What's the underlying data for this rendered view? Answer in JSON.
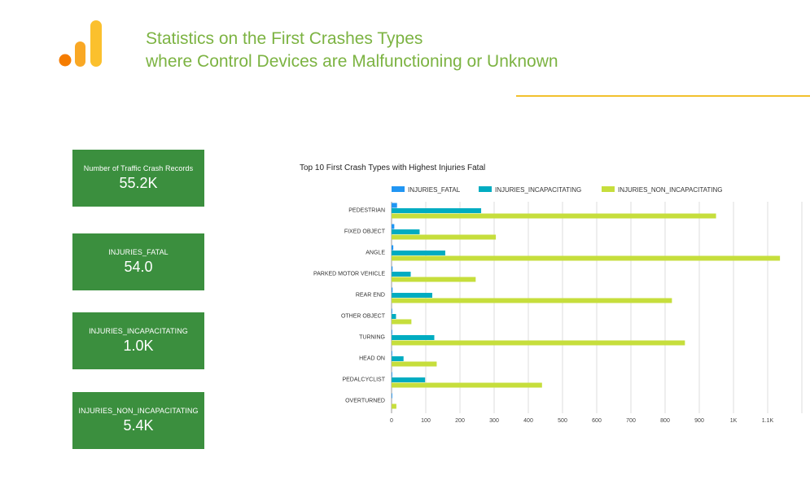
{
  "header": {
    "title_line1": "Statistics on the First Crashes Types",
    "title_line2": "where Control Devices are Malfunctioning or Unknown",
    "logo_icon": "bar-chart-logo-icon",
    "title_color": "#7cb342",
    "rule_color": "#f2c12e"
  },
  "kpis": [
    {
      "label": "Number of Traffic Crash Records",
      "value": "55.2K"
    },
    {
      "label": "INJURIES_FATAL",
      "value": "54.0"
    },
    {
      "label": "INJURIES_INCAPACITATING",
      "value": "1.0K"
    },
    {
      "label": "INJURIES_NON_INCAPACITATING",
      "value": "5.4K"
    }
  ],
  "kpi_color": "#3b8f3e",
  "chart_data": {
    "type": "bar",
    "orientation": "horizontal",
    "title": "Top 10 First Crash Types with Highest Injuries Fatal",
    "categories": [
      "PEDESTRIAN",
      "FIXED OBJECT",
      "ANGLE",
      "PARKED MOTOR VEHICLE",
      "REAR END",
      "OTHER OBJECT",
      "TURNING",
      "HEAD ON",
      "PEDALCYCLIST",
      "OVERTURNED"
    ],
    "series": [
      {
        "name": "INJURIES_FATAL",
        "color": "#2196f3",
        "values": [
          16,
          8,
          5,
          3,
          3,
          2,
          2,
          2,
          2,
          2
        ]
      },
      {
        "name": "INJURIES_INCAPACITATING",
        "color": "#00acc1",
        "values": [
          262,
          82,
          157,
          56,
          119,
          13,
          125,
          35,
          98,
          0
        ]
      },
      {
        "name": "INJURIES_NON_INCAPACITATING",
        "color": "#c6de3c",
        "values": [
          949,
          305,
          1136,
          246,
          820,
          58,
          858,
          132,
          440,
          14
        ]
      }
    ],
    "xaxis": {
      "min": 0,
      "max": 1200,
      "ticks": [
        0,
        100,
        200,
        300,
        400,
        500,
        600,
        700,
        800,
        900,
        1000,
        1100,
        1200
      ],
      "tick_labels": [
        "0",
        "100",
        "200",
        "300",
        "400",
        "500",
        "600",
        "700",
        "800",
        "900",
        "1K",
        "1.1K",
        ""
      ]
    },
    "legend_position": "top",
    "grid": true,
    "grid_color": "#dddddd"
  }
}
